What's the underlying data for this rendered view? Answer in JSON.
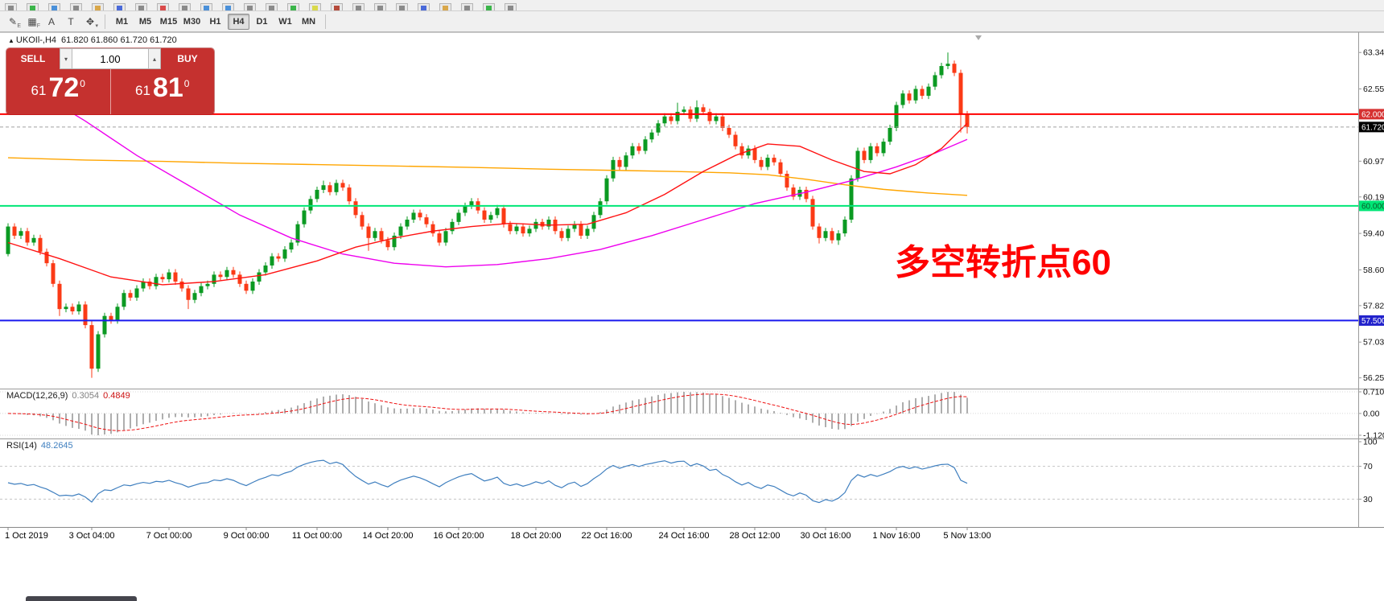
{
  "colors": {
    "bull": "#0b9a22",
    "bear": "#fb3a16",
    "accent_red": "#c5312f"
  },
  "toolbar_top": {
    "icons": [
      {
        "name": "window-menu-icon",
        "color": "#8a8a8a"
      },
      {
        "name": "new-order-icon",
        "color": "#3bb54a"
      },
      {
        "name": "market-watch-icon",
        "color": "#4a90d9"
      },
      {
        "name": "data-window-icon",
        "color": "#8a8a8a"
      },
      {
        "name": "navigator-icon",
        "color": "#d9a74a"
      },
      {
        "name": "terminal-icon",
        "color": "#4a6ad9"
      },
      {
        "name": "strategy-tester-icon",
        "color": "#8a8a8a"
      },
      {
        "name": "new-chart-icon",
        "color": "#d94a4a"
      },
      {
        "name": "profiles-icon",
        "color": "#8a8a8a"
      },
      {
        "name": "zoom-in-icon",
        "color": "#4a90d9"
      },
      {
        "name": "zoom-out-icon",
        "color": "#4a90d9"
      },
      {
        "name": "tile-windows-icon",
        "color": "#8a8a8a"
      },
      {
        "name": "cascade-windows-icon",
        "color": "#8a8a8a"
      },
      {
        "name": "autotrading-icon",
        "color": "#3bb54a"
      },
      {
        "name": "metaeditor-icon",
        "color": "#d9d94a"
      },
      {
        "name": "indicators-icon",
        "color": "#b54a3b"
      },
      {
        "name": "objects-list-icon",
        "color": "#8a8a8a"
      },
      {
        "name": "full-screen-icon",
        "color": "#8a8a8a"
      },
      {
        "name": "print-icon",
        "color": "#8a8a8a"
      },
      {
        "name": "save-icon",
        "color": "#4a6ad9"
      },
      {
        "name": "alerts-icon",
        "color": "#d9a74a"
      },
      {
        "name": "news-icon",
        "color": "#8a8a8a"
      },
      {
        "name": "help-icon",
        "color": "#3bb54a"
      },
      {
        "name": "settings-icon",
        "color": "#8a8a8a"
      }
    ]
  },
  "toolbar_tools": {
    "items": [
      {
        "name": "pen-tool-icon",
        "glyph": "✎",
        "badge": "E"
      },
      {
        "name": "grid-tool-icon",
        "glyph": "▦",
        "badge": "F"
      },
      {
        "name": "text-tool-icon",
        "glyph": "A",
        "badge": ""
      },
      {
        "name": "label-tool-icon",
        "glyph": "T",
        "badge": ""
      },
      {
        "name": "arrows-tool-icon",
        "glyph": "✥",
        "badge": "▾"
      }
    ]
  },
  "toolbar_timeframes": {
    "buttons": [
      "M1",
      "M5",
      "M15",
      "M30",
      "H1",
      "H4",
      "D1",
      "W1",
      "MN"
    ],
    "active": "H4"
  },
  "chart": {
    "marker": "▲",
    "symbol_label": "UKOIl-,H4",
    "ohlc_label": "61.820 61.860 61.720 61.720",
    "annotation": {
      "text": "多空转折点60",
      "color": "#ff0000"
    }
  },
  "trade_panel": {
    "sell_label": "SELL",
    "buy_label": "BUY",
    "volume": "1.00",
    "spin_down": "▾",
    "spin_up": "▴",
    "sell_small": "61",
    "sell_big": "72",
    "sell_sup": "0",
    "buy_small": "61",
    "buy_big": "81",
    "buy_sup": "0"
  },
  "chart_data": {
    "type": "candlestick",
    "symbol": "UKOIl-",
    "timeframe": "H4",
    "ohlc_current": {
      "open": 61.82,
      "high": 61.86,
      "low": 61.72,
      "close": 61.72
    },
    "ylim": [
      56.25,
      63.345
    ],
    "y_axis": {
      "labels": [
        "63.345",
        "62.550",
        "60.975",
        "60.195",
        "59.400",
        "58.605",
        "57.825",
        "57.030",
        "56.250"
      ]
    },
    "open_first": 58.95,
    "default_wick": 0.07,
    "closes": [
      59.55,
      59.35,
      59.45,
      59.2,
      59.3,
      59.0,
      58.75,
      58.3,
      57.75,
      57.8,
      57.7,
      57.85,
      57.4,
      56.45,
      57.2,
      57.6,
      57.5,
      57.8,
      58.1,
      58.0,
      58.2,
      58.35,
      58.25,
      58.45,
      58.4,
      58.55,
      58.35,
      58.2,
      57.95,
      58.1,
      58.25,
      58.3,
      58.5,
      58.45,
      58.6,
      58.5,
      58.3,
      58.15,
      58.35,
      58.55,
      58.7,
      58.9,
      58.85,
      59.05,
      59.2,
      59.6,
      59.9,
      60.15,
      60.35,
      60.45,
      60.3,
      60.5,
      60.4,
      60.1,
      59.8,
      59.55,
      59.3,
      59.45,
      59.25,
      59.1,
      59.35,
      59.55,
      59.7,
      59.85,
      59.75,
      59.6,
      59.4,
      59.2,
      59.45,
      59.65,
      59.85,
      60.0,
      60.1,
      59.9,
      59.7,
      59.8,
      59.95,
      59.6,
      59.45,
      59.55,
      59.4,
      59.5,
      59.65,
      59.55,
      59.7,
      59.45,
      59.3,
      59.5,
      59.6,
      59.35,
      59.5,
      59.8,
      60.1,
      60.6,
      61.0,
      60.85,
      61.1,
      61.3,
      61.2,
      61.45,
      61.6,
      61.8,
      61.95,
      61.85,
      62.05,
      62.1,
      61.9,
      62.15,
      62.05,
      61.85,
      61.95,
      61.7,
      61.55,
      61.3,
      61.1,
      61.25,
      61.0,
      60.85,
      61.05,
      60.95,
      60.7,
      60.4,
      60.2,
      60.35,
      60.15,
      59.55,
      59.3,
      59.45,
      59.25,
      59.4,
      59.7,
      60.6,
      61.2,
      61.0,
      61.3,
      61.15,
      61.4,
      61.7,
      62.2,
      62.45,
      62.3,
      62.55,
      62.4,
      62.6,
      62.85,
      63.05,
      63.1,
      62.9,
      62.0,
      61.72
    ],
    "wick_overrides": {
      "0": {
        "low": 58.9
      },
      "8": {
        "low": 57.6
      },
      "13": {
        "low": 56.25,
        "high": 57.5
      },
      "28": {
        "low": 57.75
      },
      "49": {
        "high": 60.55
      },
      "56": {
        "low": 59.02
      },
      "104": {
        "high": 62.25
      },
      "107": {
        "high": 62.3
      },
      "126": {
        "low": 59.18
      },
      "129": {
        "low": 59.15
      },
      "146": {
        "high": 63.345
      },
      "148": {
        "low": 61.6
      },
      "149": {
        "low": 61.58
      }
    },
    "levels": [
      {
        "price": 62.0,
        "label": "62.000",
        "color": "#ff0000",
        "label_bg": "#d63030",
        "label_fg": "#ffffff",
        "width": 2
      },
      {
        "price": 60.0,
        "label": "60.000",
        "color": "#00e676",
        "label_bg": "#00e676",
        "label_fg": "#0a5a28",
        "width": 2
      },
      {
        "price": 57.5,
        "label": "57.500",
        "color": "#1a1aee",
        "label_bg": "#2222cc",
        "label_fg": "#ffffff",
        "width": 2
      }
    ],
    "bid_line": {
      "price": 61.72,
      "label": "61.720",
      "color": "#a0a0a0",
      "label_bg": "#000000",
      "label_fg": "#ffffff"
    },
    "moving_averages": [
      {
        "name": "slow-ma",
        "color": "#ffa500",
        "points": [
          [
            0,
            61.05
          ],
          [
            12,
            61.0
          ],
          [
            24,
            60.97
          ],
          [
            36,
            60.93
          ],
          [
            48,
            60.9
          ],
          [
            60,
            60.87
          ],
          [
            72,
            60.84
          ],
          [
            84,
            60.8
          ],
          [
            96,
            60.77
          ],
          [
            104,
            60.75
          ],
          [
            112,
            60.72
          ],
          [
            118,
            60.68
          ],
          [
            124,
            60.58
          ],
          [
            130,
            60.46
          ],
          [
            136,
            60.36
          ],
          [
            143,
            60.28
          ],
          [
            149,
            60.23
          ]
        ]
      },
      {
        "name": "medium-ma",
        "color": "#ee00ee",
        "points": [
          [
            5,
            62.45
          ],
          [
            12,
            61.85
          ],
          [
            20,
            61.1
          ],
          [
            28,
            60.45
          ],
          [
            36,
            59.8
          ],
          [
            44,
            59.3
          ],
          [
            52,
            58.95
          ],
          [
            60,
            58.75
          ],
          [
            68,
            58.67
          ],
          [
            76,
            58.72
          ],
          [
            84,
            58.85
          ],
          [
            92,
            59.05
          ],
          [
            100,
            59.35
          ],
          [
            108,
            59.7
          ],
          [
            116,
            60.05
          ],
          [
            124,
            60.3
          ],
          [
            131,
            60.55
          ],
          [
            138,
            60.85
          ],
          [
            144,
            61.15
          ],
          [
            149,
            61.45
          ]
        ]
      },
      {
        "name": "fast-ma",
        "color": "#ff1212",
        "points": [
          [
            0,
            59.2
          ],
          [
            8,
            58.85
          ],
          [
            16,
            58.45
          ],
          [
            24,
            58.28
          ],
          [
            32,
            58.35
          ],
          [
            40,
            58.5
          ],
          [
            48,
            58.8
          ],
          [
            54,
            59.1
          ],
          [
            60,
            59.3
          ],
          [
            66,
            59.45
          ],
          [
            72,
            59.55
          ],
          [
            78,
            59.62
          ],
          [
            84,
            59.58
          ],
          [
            90,
            59.6
          ],
          [
            96,
            59.85
          ],
          [
            102,
            60.25
          ],
          [
            108,
            60.75
          ],
          [
            113,
            61.1
          ],
          [
            118,
            61.35
          ],
          [
            123,
            61.3
          ],
          [
            128,
            61.0
          ],
          [
            133,
            60.75
          ],
          [
            137,
            60.7
          ],
          [
            141,
            60.9
          ],
          [
            145,
            61.25
          ],
          [
            149,
            61.8
          ]
        ]
      }
    ],
    "x_ticks": [
      {
        "index": 0,
        "label": "1 Oct 2019"
      },
      {
        "index": 13,
        "label": "3 Oct 04:00"
      },
      {
        "index": 25,
        "label": "7 Oct 00:00"
      },
      {
        "index": 37,
        "label": "9 Oct 00:00"
      },
      {
        "index": 48,
        "label": "11 Oct 00:00"
      },
      {
        "index": 59,
        "label": "14 Oct 20:00"
      },
      {
        "index": 70,
        "label": "16 Oct 20:00"
      },
      {
        "index": 82,
        "label": "18 Oct 20:00"
      },
      {
        "index": 93,
        "label": "22 Oct 16:00"
      },
      {
        "index": 105,
        "label": "24 Oct 16:00"
      },
      {
        "index": 116,
        "label": "28 Oct 12:00"
      },
      {
        "index": 127,
        "label": "30 Oct 16:00"
      },
      {
        "index": 138,
        "label": "1 Nov 16:00"
      },
      {
        "index": 149,
        "label": "5 Nov 13:00"
      }
    ],
    "indicators": {
      "macd": {
        "label": "MACD(12,26,9)",
        "value_main": "0.3054",
        "value_signal": "0.4849",
        "scale_labels": [
          "0.7103",
          "0.00",
          "-1.1205"
        ],
        "histogram_color": "#9a9a9a",
        "signal_color": "#ee1111",
        "params": {
          "fast": 12,
          "slow": 26,
          "signal": 9
        }
      },
      "rsi": {
        "label": "RSI(14)",
        "value": "48.2645",
        "scale_labels": [
          "100",
          "70",
          "30"
        ],
        "levels": [
          70,
          30
        ],
        "line_color": "#3f7fbf",
        "period": 14
      }
    }
  }
}
